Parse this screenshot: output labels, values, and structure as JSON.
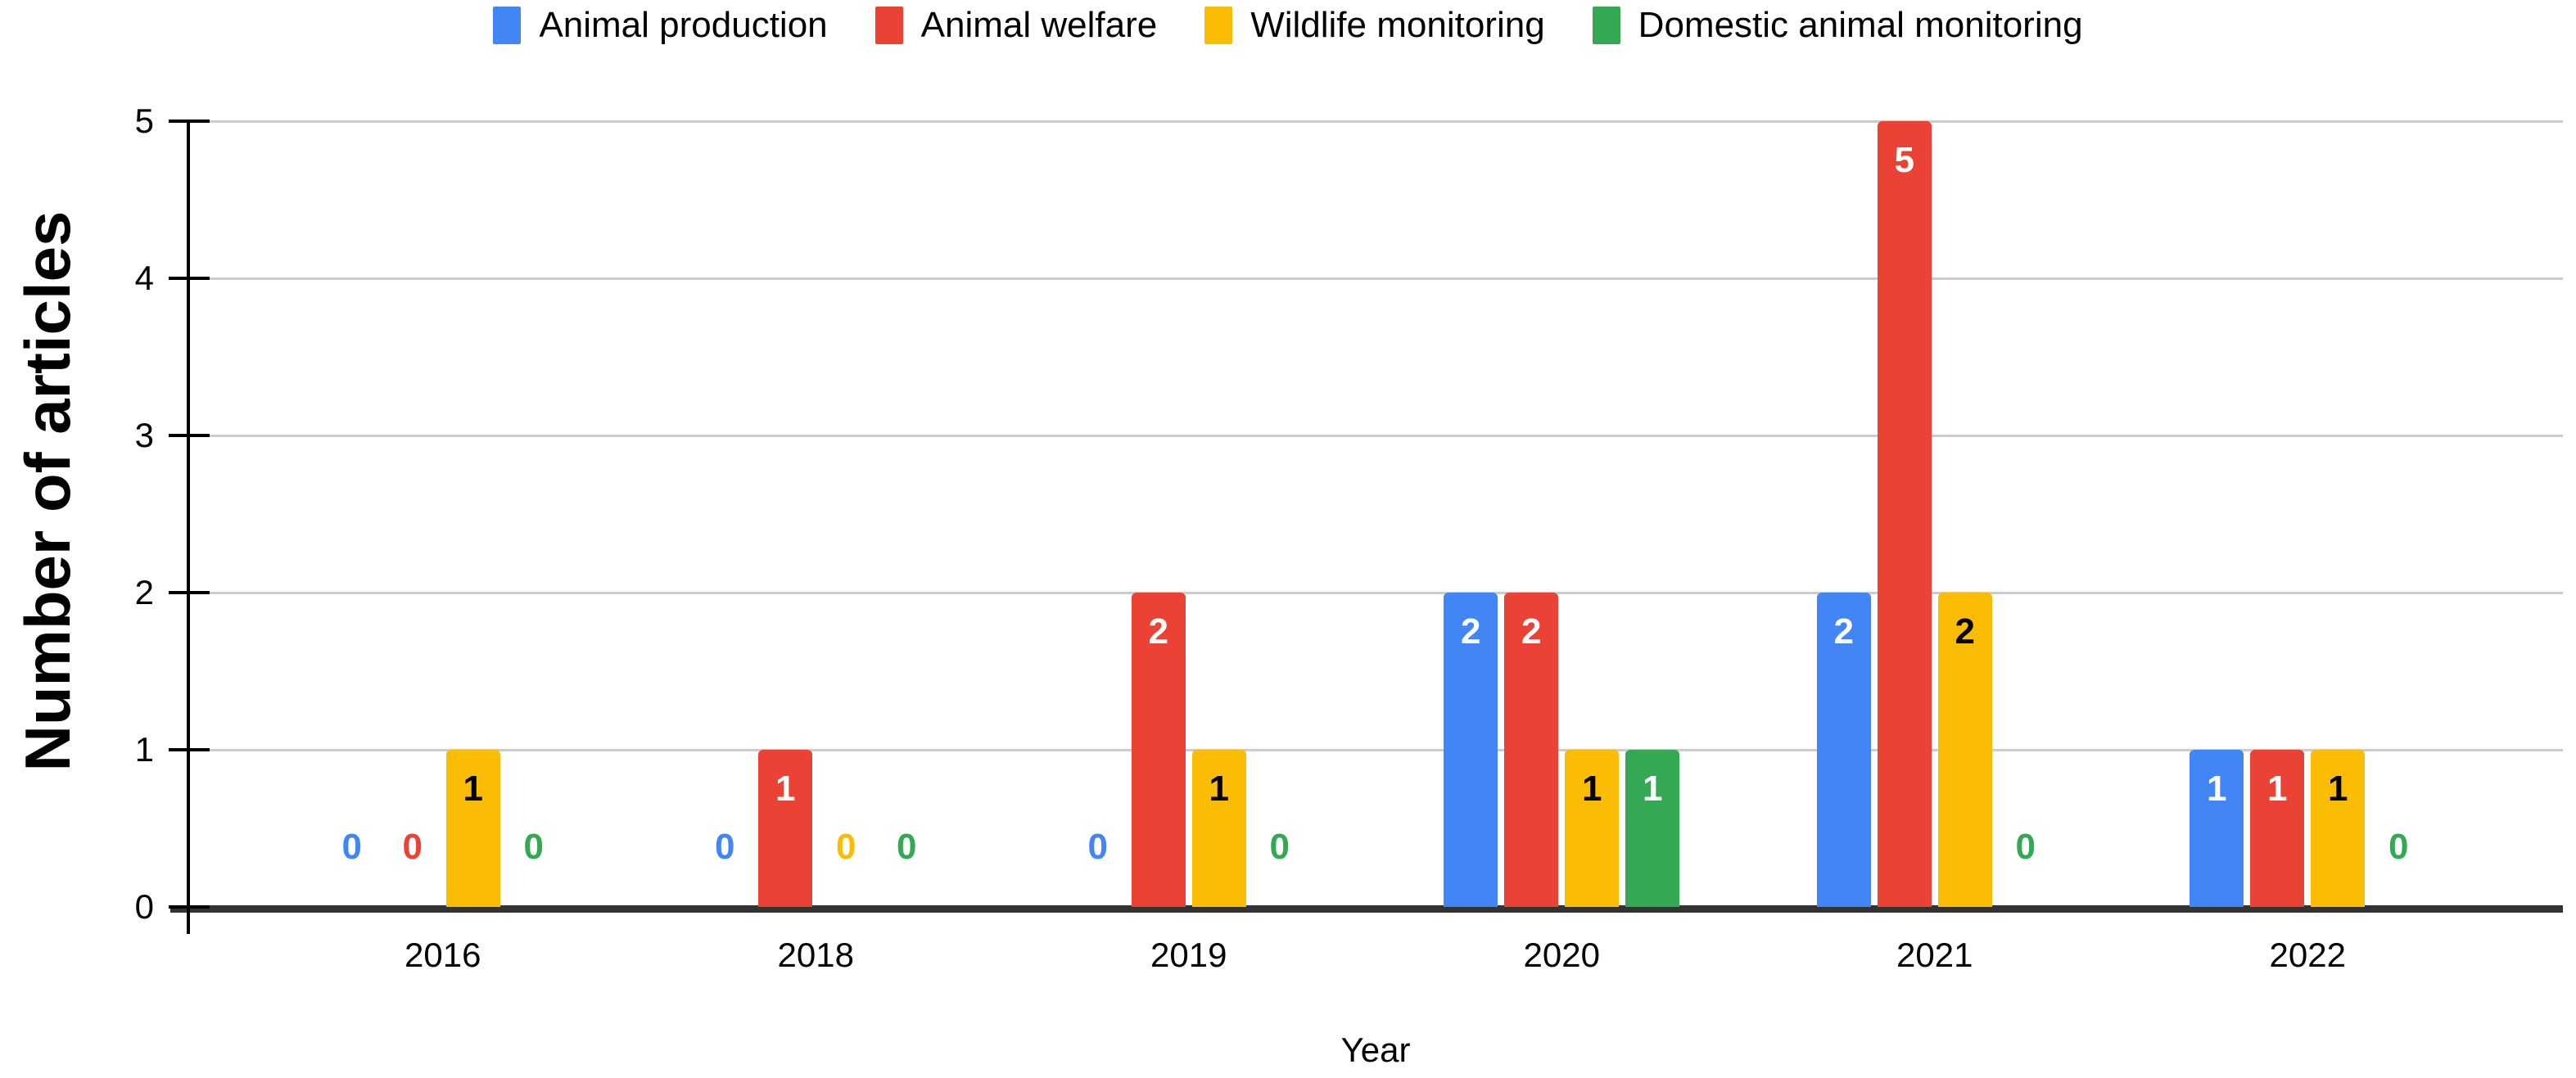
{
  "chart_data": {
    "type": "bar",
    "title": "",
    "categories": [
      "2016",
      "2018",
      "2019",
      "2020",
      "2021",
      "2022"
    ],
    "series": [
      {
        "name": "Animal production",
        "color": "#4285F4",
        "label_color": "#ffffff",
        "values": [
          0,
          0,
          0,
          2,
          2,
          1
        ]
      },
      {
        "name": "Animal welfare",
        "color": "#EA4335",
        "label_color": "#ffffff",
        "values": [
          0,
          1,
          2,
          2,
          5,
          1
        ]
      },
      {
        "name": "Wildlife monitoring",
        "color": "#FBBC04",
        "label_color": "#000000",
        "values": [
          1,
          0,
          1,
          1,
          2,
          1
        ]
      },
      {
        "name": "Domestic animal monitoring",
        "color": "#34A853",
        "label_color": "#ffffff",
        "values": [
          0,
          0,
          0,
          1,
          0,
          0
        ]
      }
    ],
    "xlabel": "Year",
    "ylabel": "Number of articles",
    "y_ticks": [
      0,
      1,
      2,
      3,
      4,
      5
    ],
    "ylim": [
      0,
      5
    ],
    "grid": true,
    "legend_position": "top",
    "data_labels": true
  },
  "style_colors": {
    "gridline": "#cccccc",
    "axis_line": "#000000",
    "baseline": "#333333",
    "text": "#000000"
  }
}
